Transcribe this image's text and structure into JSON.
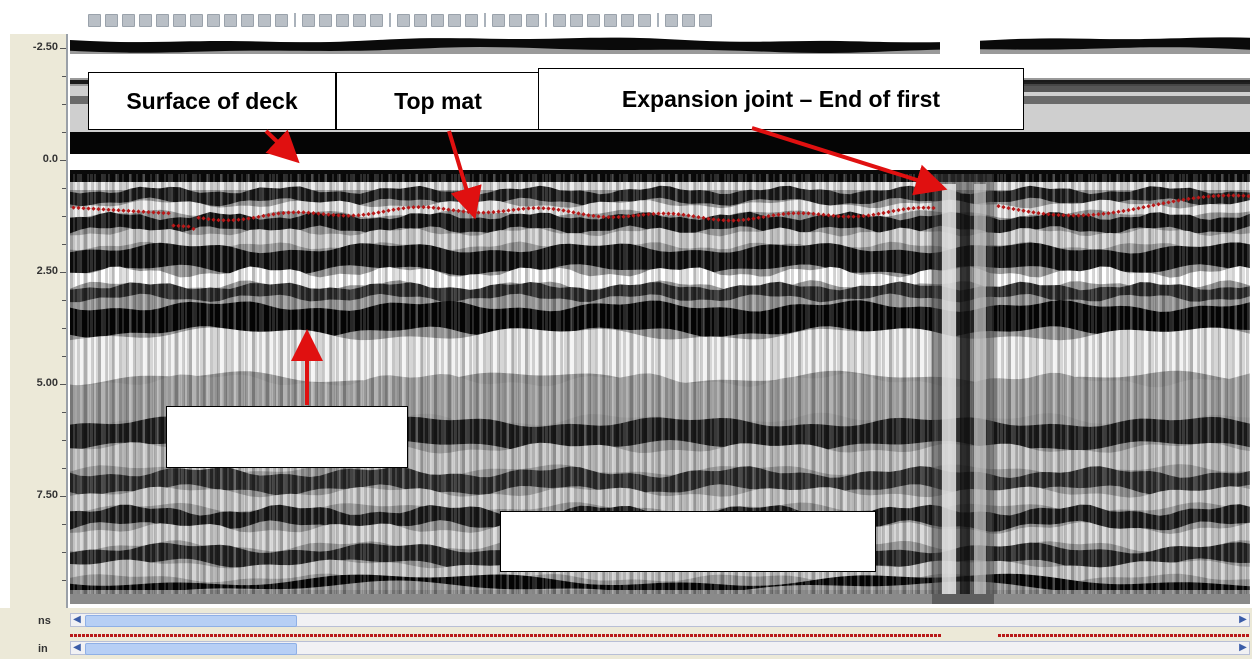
{
  "toolbar": {
    "button_count": 34
  },
  "depth_axis": {
    "unit": "ns",
    "labels": [
      "-2.50",
      "0.0",
      "2.50",
      "5.00",
      "7.50"
    ]
  },
  "callouts": {
    "surface": "Surface of deck",
    "topmat": "Top mat",
    "expansion": "Expansion joint – End of first"
  },
  "distance_axis": {
    "unit": "in"
  },
  "colors": {
    "arrow": "#e01010",
    "picks": "#b81818",
    "scroll_thumb": "#b7cff5"
  }
}
